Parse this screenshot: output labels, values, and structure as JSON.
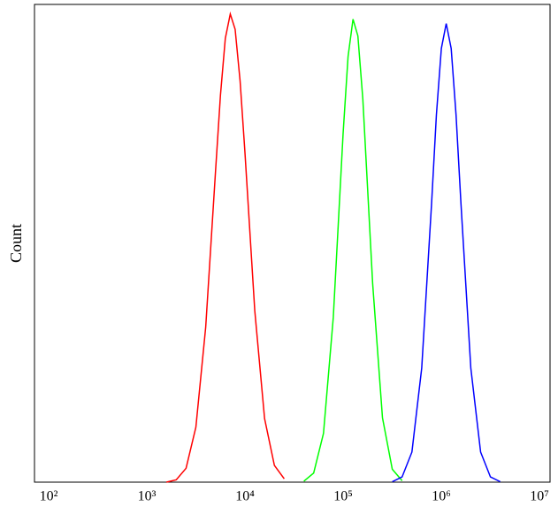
{
  "chart_data": {
    "type": "line",
    "y_label": "Count",
    "xscale": "log",
    "xlim": [
      71.8,
      12800000
    ],
    "ylim": [
      0,
      100
    ],
    "xticks": [
      {
        "value": 100,
        "label": "10²"
      },
      {
        "value": 1000,
        "label": "10³"
      },
      {
        "value": 10000,
        "label": "10⁴"
      },
      {
        "value": 100000,
        "label": "10⁵"
      },
      {
        "value": 1000000,
        "label": "10⁶"
      },
      {
        "value": 10000000,
        "label": "10⁷"
      }
    ],
    "series": [
      {
        "color": "#ff0000",
        "x": [
          1585,
          1995,
          2512,
          3162,
          3981,
          5012,
          5623,
          6310,
          7079,
          7943,
          8913,
          10000,
          12589,
          15849,
          19953,
          25119
        ],
        "values": [
          0,
          0.5,
          2.9,
          11.5,
          32.4,
          65,
          81,
          92.9,
          98,
          94.8,
          84,
          69,
          35.9,
          13.3,
          3.5,
          0.7
        ]
      },
      {
        "color": "#00ff00",
        "x": [
          39811,
          50119,
          63096,
          79433,
          100000,
          112202,
          125893,
          141254,
          158489,
          199526,
          251189,
          316228,
          398107
        ],
        "values": [
          0.2,
          1.9,
          10.2,
          34.5,
          73,
          89.1,
          96.9,
          93.4,
          80.2,
          41.6,
          13.5,
          2.7,
          0.3
        ]
      },
      {
        "color": "#0000ff",
        "x": [
          316228,
          398107,
          501187,
          630957,
          794328,
          891251,
          1000000,
          1122018,
          1258925,
          1412538,
          1584893,
          1995262,
          2511886,
          3162278,
          3981072
        ],
        "values": [
          0.1,
          1.1,
          6.3,
          23.9,
          58.2,
          76.9,
          90.8,
          96,
          90.8,
          76.9,
          58.2,
          23.9,
          6.3,
          1.1,
          0.1
        ]
      }
    ]
  }
}
